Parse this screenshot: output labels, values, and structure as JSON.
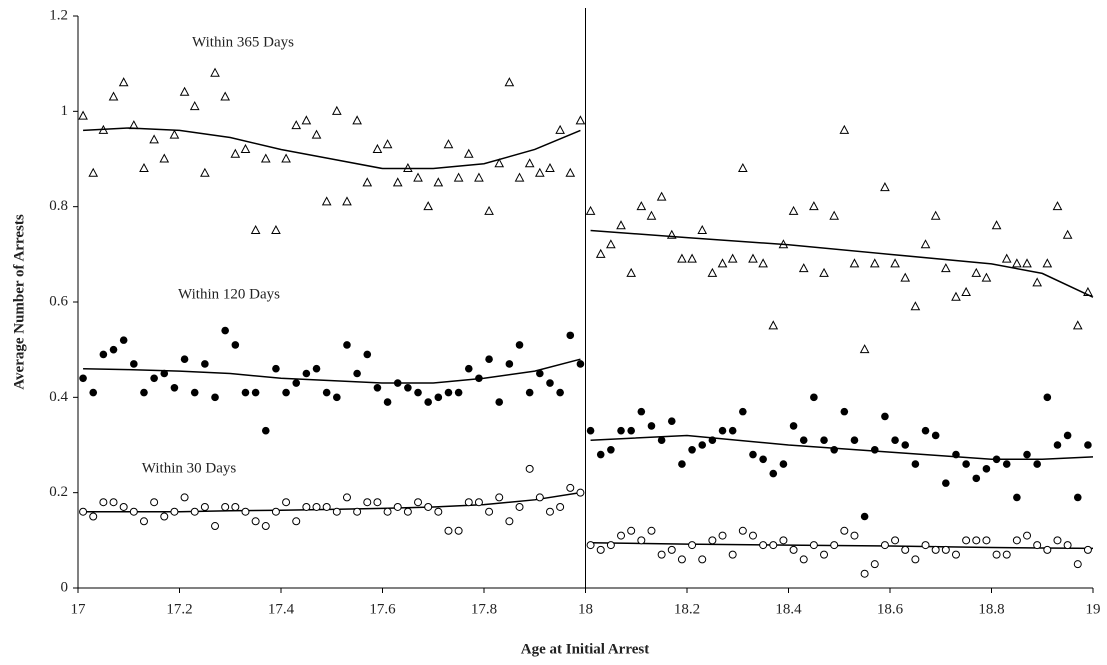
{
  "chart_data": {
    "type": "scatter",
    "x_label": "Age at Initial Arrest",
    "y_label": "Average Number of Arrests",
    "xlim": [
      17,
      19
    ],
    "xticks": [
      17,
      17.2,
      17.4,
      17.6,
      17.8,
      18,
      18.2,
      18.4,
      18.6,
      18.8,
      19
    ],
    "ylim": [
      0,
      1.2
    ],
    "yticks": [
      0,
      0.2,
      0.4,
      0.6,
      0.8,
      1,
      1.2
    ],
    "cutoff": 18,
    "color": "#000000",
    "x": [
      17.01,
      17.03,
      17.05,
      17.07,
      17.09,
      17.11,
      17.13,
      17.15,
      17.17,
      17.19,
      17.21,
      17.23,
      17.25,
      17.27,
      17.29,
      17.31,
      17.33,
      17.35,
      17.37,
      17.39,
      17.41,
      17.43,
      17.45,
      17.47,
      17.49,
      17.51,
      17.53,
      17.55,
      17.57,
      17.59,
      17.61,
      17.63,
      17.65,
      17.67,
      17.69,
      17.71,
      17.73,
      17.75,
      17.77,
      17.79,
      17.81,
      17.83,
      17.85,
      17.87,
      17.89,
      17.91,
      17.93,
      17.95,
      17.97,
      17.99,
      18.01,
      18.03,
      18.05,
      18.07,
      18.09,
      18.11,
      18.13,
      18.15,
      18.17,
      18.19,
      18.21,
      18.23,
      18.25,
      18.27,
      18.29,
      18.31,
      18.33,
      18.35,
      18.37,
      18.39,
      18.41,
      18.43,
      18.45,
      18.47,
      18.49,
      18.51,
      18.53,
      18.55,
      18.57,
      18.59,
      18.61,
      18.63,
      18.65,
      18.67,
      18.69,
      18.71,
      18.73,
      18.75,
      18.77,
      18.79,
      18.81,
      18.83,
      18.85,
      18.87,
      18.89,
      18.91,
      18.93,
      18.95,
      18.97,
      18.99
    ],
    "trend_x": [
      17.01,
      17.1,
      17.2,
      17.3,
      17.4,
      17.5,
      17.6,
      17.7,
      17.8,
      17.9,
      17.99,
      18,
      18.01,
      18.2,
      18.4,
      18.6,
      18.8,
      18.9,
      19
    ],
    "series": [
      {
        "name": "Within 365 Days",
        "marker": "triangle",
        "values": [
          0.99,
          0.87,
          0.96,
          1.03,
          1.06,
          0.97,
          0.88,
          0.94,
          0.9,
          0.95,
          1.04,
          1.01,
          0.87,
          1.08,
          1.03,
          0.91,
          0.92,
          0.75,
          0.9,
          0.75,
          0.9,
          0.97,
          0.98,
          0.95,
          0.81,
          1.0,
          0.81,
          0.98,
          0.85,
          0.92,
          0.93,
          0.85,
          0.88,
          0.86,
          0.8,
          0.85,
          0.93,
          0.86,
          0.91,
          0.86,
          0.79,
          0.89,
          1.06,
          0.86,
          0.89,
          0.87,
          0.88,
          0.96,
          0.87,
          0.98,
          0.79,
          0.7,
          0.72,
          0.76,
          0.66,
          0.8,
          0.78,
          0.82,
          0.74,
          0.69,
          0.69,
          0.75,
          0.66,
          0.68,
          0.69,
          0.88,
          0.69,
          0.68,
          0.55,
          0.72,
          0.79,
          0.67,
          0.8,
          0.66,
          0.78,
          0.96,
          0.68,
          0.5,
          0.68,
          0.84,
          0.68,
          0.65,
          0.59,
          0.72,
          0.78,
          0.67,
          0.61,
          0.62,
          0.66,
          0.65,
          0.76,
          0.69,
          0.68,
          0.68,
          0.64,
          0.68,
          0.8,
          0.74,
          0.55,
          0.62
        ],
        "trend_values": [
          0.96,
          0.965,
          0.96,
          0.945,
          0.92,
          0.9,
          0.88,
          0.88,
          0.89,
          0.92,
          0.96,
          null,
          0.75,
          0.735,
          0.72,
          0.7,
          0.68,
          0.66,
          0.61
        ]
      },
      {
        "name": "Within 120 Days",
        "marker": "filled-circle",
        "values": [
          0.44,
          0.41,
          0.49,
          0.5,
          0.52,
          0.47,
          0.41,
          0.44,
          0.45,
          0.42,
          0.48,
          0.41,
          0.47,
          0.4,
          0.54,
          0.51,
          0.41,
          0.41,
          0.33,
          0.46,
          0.41,
          0.43,
          0.45,
          0.46,
          0.41,
          0.4,
          0.51,
          0.45,
          0.49,
          0.42,
          0.39,
          0.43,
          0.42,
          0.41,
          0.39,
          0.4,
          0.41,
          0.41,
          0.46,
          0.44,
          0.48,
          0.39,
          0.47,
          0.51,
          0.41,
          0.45,
          0.43,
          0.41,
          0.53,
          0.47,
          0.33,
          0.28,
          0.29,
          0.33,
          0.33,
          0.37,
          0.34,
          0.31,
          0.35,
          0.26,
          0.29,
          0.3,
          0.31,
          0.33,
          0.33,
          0.37,
          0.28,
          0.27,
          0.24,
          0.26,
          0.34,
          0.31,
          0.4,
          0.31,
          0.29,
          0.37,
          0.31,
          0.15,
          0.29,
          0.36,
          0.31,
          0.3,
          0.26,
          0.33,
          0.32,
          0.22,
          0.28,
          0.26,
          0.23,
          0.25,
          0.27,
          0.26,
          0.19,
          0.28,
          0.26,
          0.4,
          0.3,
          0.32,
          0.19,
          0.3
        ],
        "trend_values": [
          0.46,
          0.458,
          0.455,
          0.45,
          0.44,
          0.435,
          0.43,
          0.43,
          0.44,
          0.455,
          0.48,
          null,
          0.31,
          0.32,
          0.3,
          0.285,
          0.27,
          0.27,
          0.275
        ]
      },
      {
        "name": "Within 30 Days",
        "marker": "open-circle",
        "values": [
          0.16,
          0.15,
          0.18,
          0.18,
          0.17,
          0.16,
          0.14,
          0.18,
          0.15,
          0.16,
          0.19,
          0.16,
          0.17,
          0.13,
          0.17,
          0.17,
          0.16,
          0.14,
          0.13,
          0.16,
          0.18,
          0.14,
          0.17,
          0.17,
          0.17,
          0.16,
          0.19,
          0.16,
          0.18,
          0.18,
          0.16,
          0.17,
          0.16,
          0.18,
          0.17,
          0.16,
          0.12,
          0.12,
          0.18,
          0.18,
          0.16,
          0.19,
          0.14,
          0.17,
          0.25,
          0.19,
          0.16,
          0.17,
          0.21,
          0.2,
          0.09,
          0.08,
          0.09,
          0.11,
          0.12,
          0.1,
          0.12,
          0.07,
          0.08,
          0.06,
          0.09,
          0.06,
          0.1,
          0.11,
          0.07,
          0.12,
          0.11,
          0.09,
          0.09,
          0.1,
          0.08,
          0.06,
          0.09,
          0.07,
          0.09,
          0.12,
          0.11,
          0.03,
          0.05,
          0.09,
          0.1,
          0.08,
          0.06,
          0.09,
          0.08,
          0.08,
          0.07,
          0.1,
          0.1,
          0.1,
          0.07,
          0.07,
          0.1,
          0.11,
          0.09,
          0.08,
          0.1,
          0.09,
          0.05,
          0.08
        ],
        "trend_values": [
          0.16,
          0.16,
          0.16,
          0.162,
          0.163,
          0.165,
          0.167,
          0.17,
          0.175,
          0.185,
          0.2,
          null,
          0.095,
          0.092,
          0.09,
          0.088,
          0.085,
          0.084,
          0.083
        ]
      }
    ]
  }
}
